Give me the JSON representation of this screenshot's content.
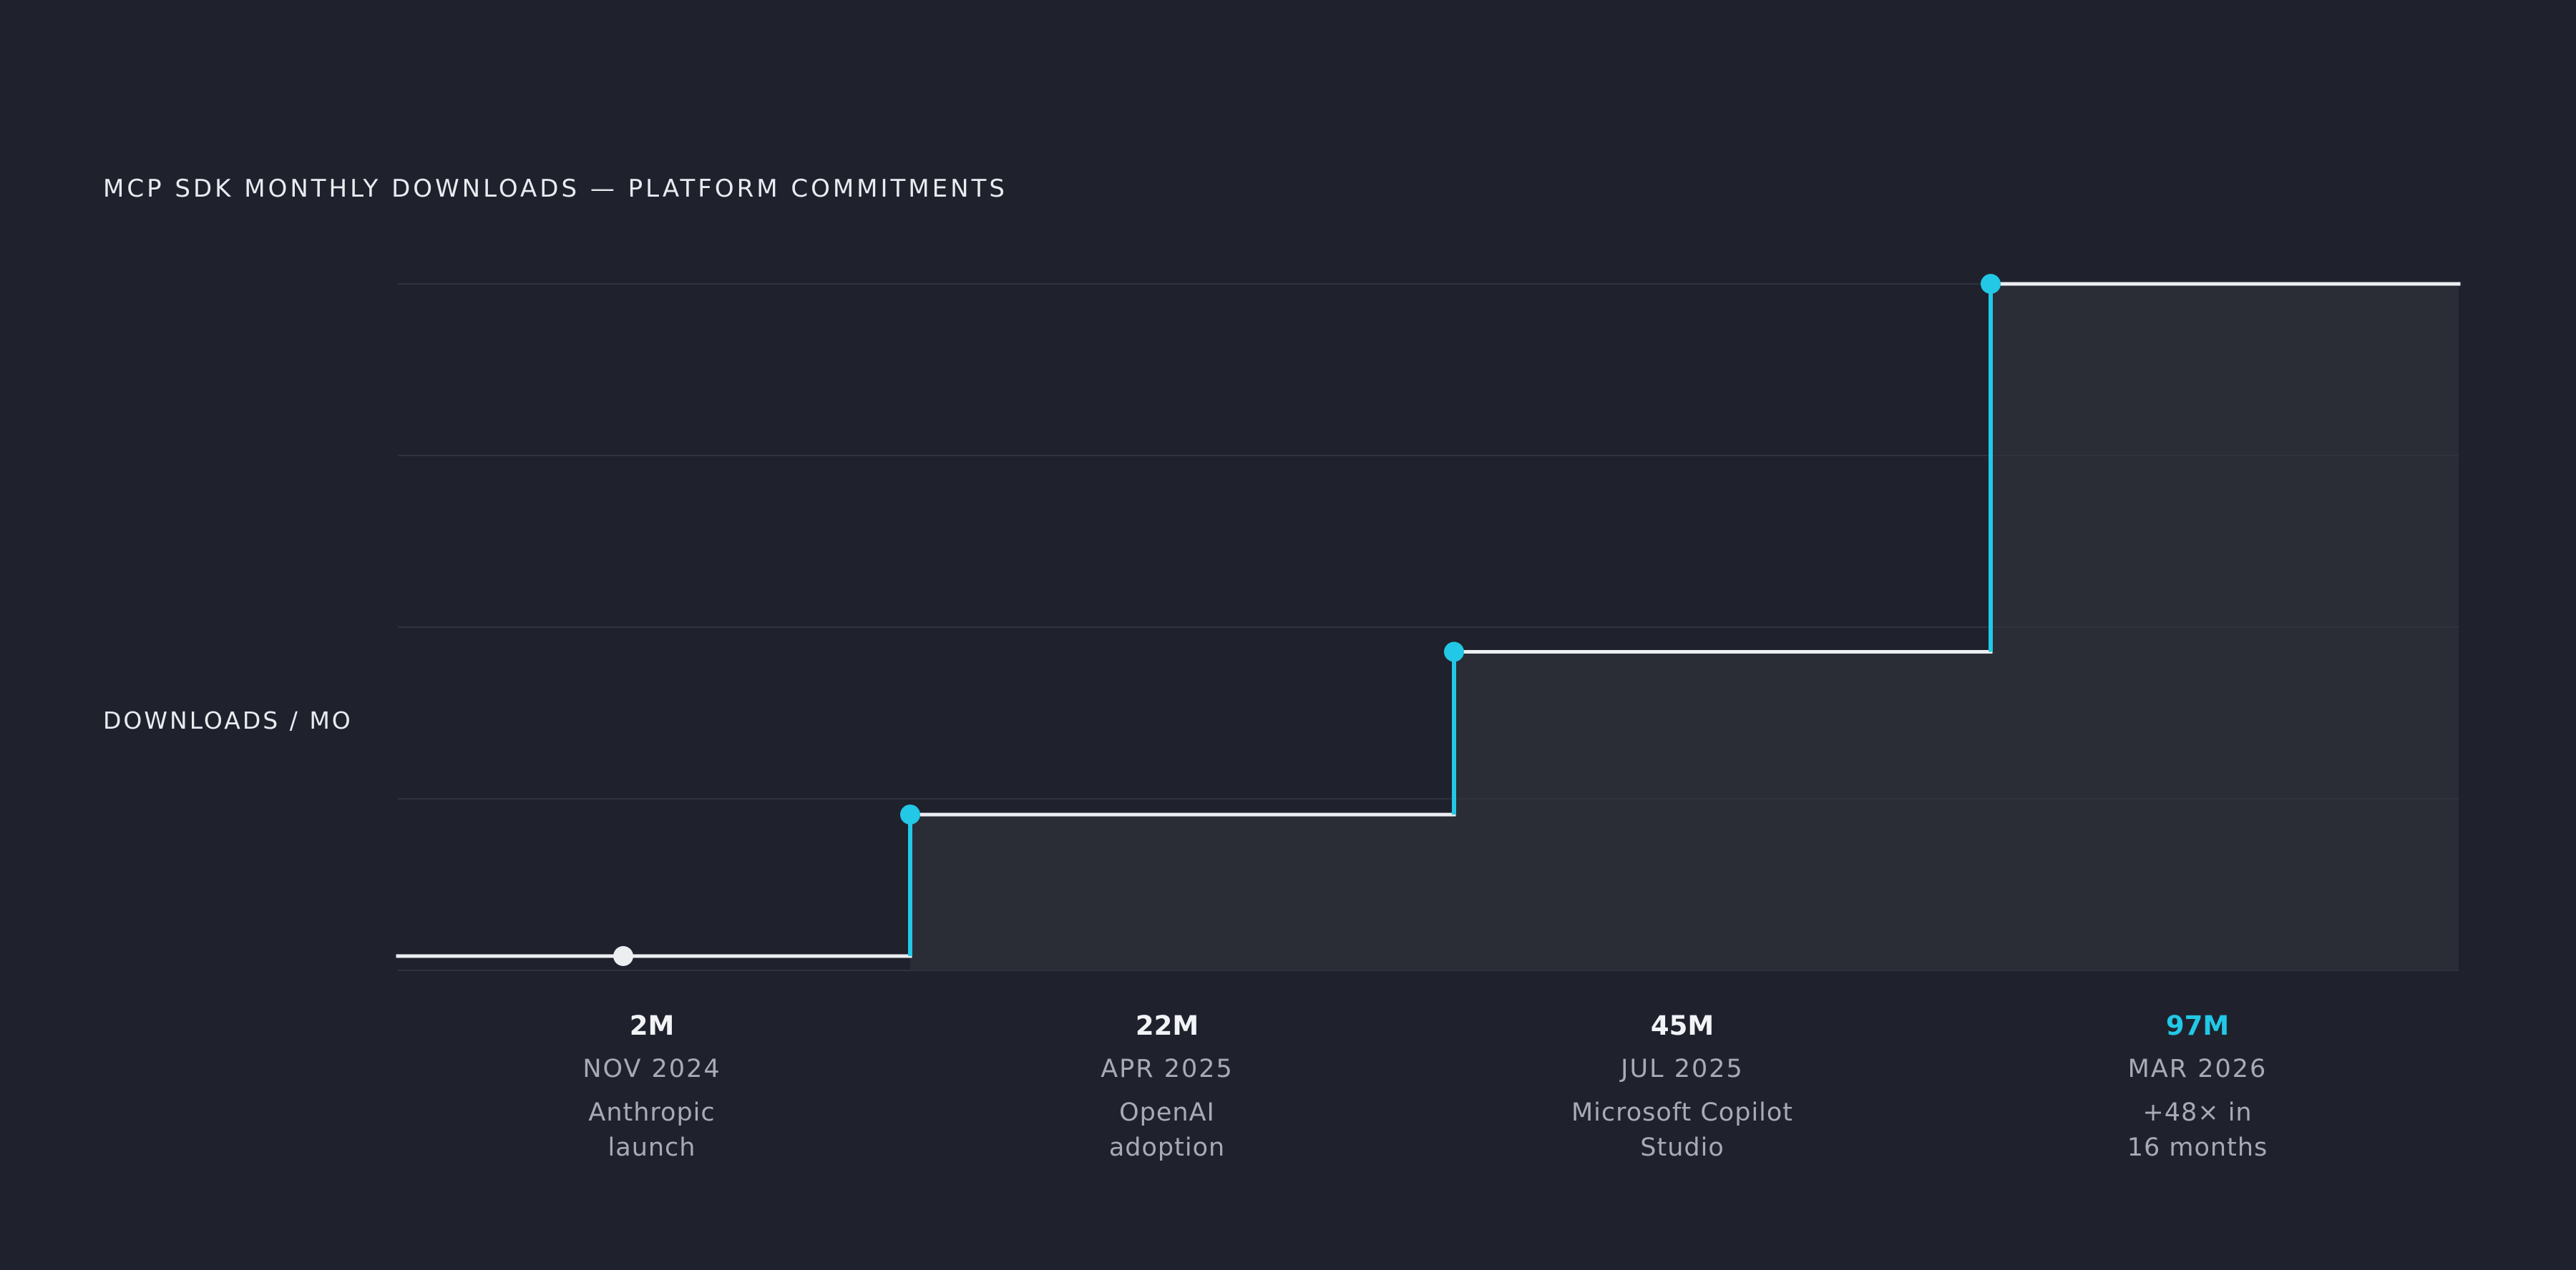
{
  "title": "MCP SDK MONTHLY DOWNLOADS — PLATFORM COMMITMENTS",
  "colors": {
    "background": "#1f222d",
    "accent": "#22c8e6",
    "line": "#eceef2",
    "area": "#2a2d36",
    "grid": "#2f333d",
    "muted_text": "#a7abb6"
  },
  "chart_data": {
    "type": "line",
    "step": true,
    "title": "MCP SDK MONTHLY DOWNLOADS — PLATFORM COMMITMENTS",
    "xlabel": "",
    "ylabel": "DOWNLOADS / MO",
    "ylim": [
      0,
      100
    ],
    "grid": true,
    "series": [
      {
        "values": [
          2,
          22,
          45,
          97
        ]
      }
    ],
    "milestones": [
      {
        "value": "2M",
        "date": "NOV 2024",
        "note": [
          "Anthropic",
          "launch"
        ],
        "highlight": false
      },
      {
        "value": "22M",
        "date": "APR 2025",
        "note": [
          "OpenAI",
          "adoption"
        ],
        "highlight": false
      },
      {
        "value": "45M",
        "date": "JUL 2025",
        "note": [
          "Microsoft Copilot",
          "Studio"
        ],
        "highlight": false
      },
      {
        "value": "97M",
        "date": "MAR 2026",
        "note": [
          "+48× in",
          "16 months"
        ],
        "highlight": true
      }
    ]
  }
}
